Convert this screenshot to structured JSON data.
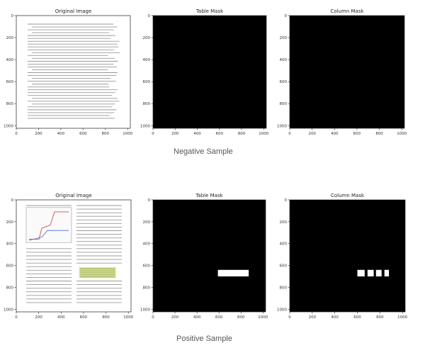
{
  "figure": {
    "rows": [
      {
        "caption": "Negative Sample",
        "panels": [
          {
            "title": "Original Image",
            "kind": "document",
            "rects": []
          },
          {
            "title": "Table Mask",
            "kind": "mask",
            "rects": []
          },
          {
            "title": "Column Mask",
            "kind": "mask",
            "rects": []
          }
        ]
      },
      {
        "caption": "Positive Sample",
        "panels": [
          {
            "title": "Original Image",
            "kind": "document-with-table",
            "rects": []
          },
          {
            "title": "Table Mask",
            "kind": "mask",
            "rects": [
              {
                "x0": 590,
                "x1": 870,
                "y0": 640,
                "y1": 700
              }
            ]
          },
          {
            "title": "Column Mask",
            "kind": "mask",
            "rects": [
              {
                "x0": 600,
                "x1": 665,
                "y0": 640,
                "y1": 700
              },
              {
                "x0": 690,
                "x1": 745,
                "y0": 640,
                "y1": 700
              },
              {
                "x0": 765,
                "x1": 815,
                "y0": 640,
                "y1": 700
              },
              {
                "x0": 840,
                "x1": 880,
                "y0": 640,
                "y1": 700
              }
            ]
          }
        ]
      }
    ]
  },
  "chart_data": {
    "type": "heatmap",
    "xlim": [
      0,
      1024
    ],
    "ylim": [
      1024,
      0
    ],
    "xticks": [
      0,
      200,
      400,
      600,
      800,
      1000
    ],
    "yticks": [
      0,
      200,
      400,
      600,
      800,
      1000
    ],
    "colors": {
      "background_mask": "#000000",
      "foreground_mask": "#ffffff",
      "text": "#444444",
      "table_highlight": "#d6e86a"
    }
  }
}
